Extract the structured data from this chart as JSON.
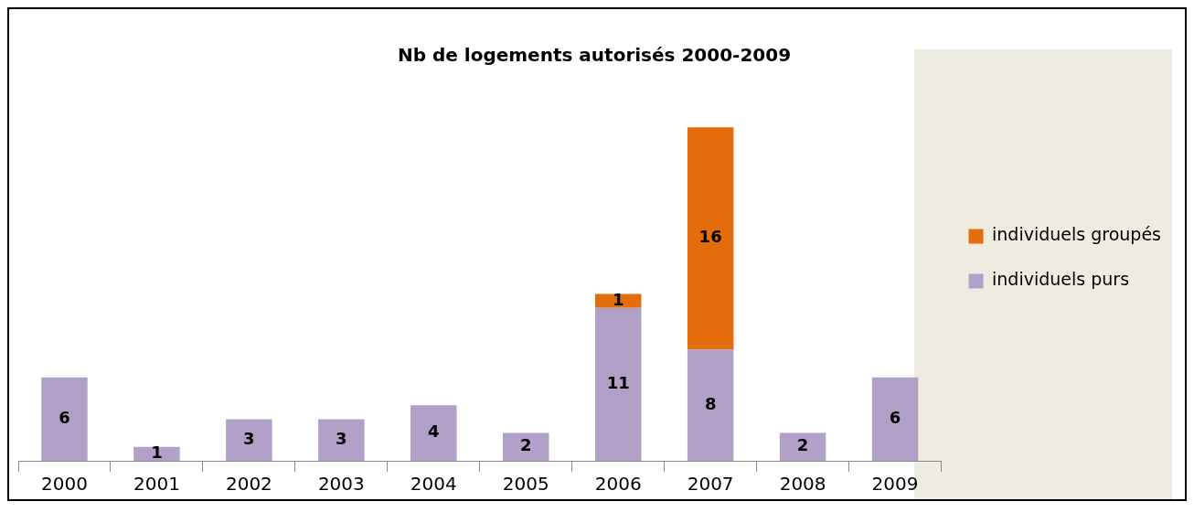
{
  "chart_data": {
    "type": "bar",
    "title": "Nb de logements autorisés 2000-2009",
    "categories": [
      "2000",
      "2001",
      "2002",
      "2003",
      "2004",
      "2005",
      "2006",
      "2007",
      "2008",
      "2009"
    ],
    "stacked": true,
    "data_labels": true,
    "legend": "right",
    "grid": false,
    "series": [
      {
        "name": "individuels purs",
        "color": "#b1a0c7",
        "values": [
          6,
          1,
          3,
          3,
          4,
          2,
          11,
          8,
          2,
          6
        ]
      },
      {
        "name": "individuels groupés",
        "color": "#e46c0a",
        "values": [
          null,
          null,
          null,
          null,
          null,
          null,
          1,
          16,
          null,
          null
        ]
      }
    ]
  }
}
